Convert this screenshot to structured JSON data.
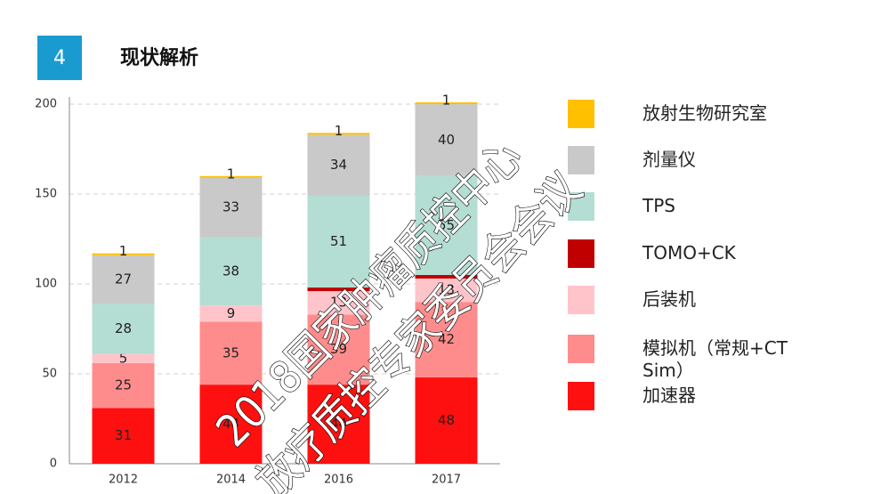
{
  "header": {
    "number": "4",
    "title": "现状解析"
  },
  "chart_data": {
    "type": "stacked_bar",
    "categories": [
      "2012",
      "2014",
      "2016",
      "2017"
    ],
    "series": [
      {
        "name": "加速器",
        "color": "#ff1010",
        "values": [
          31,
          44,
          44,
          48
        ]
      },
      {
        "name": "模拟机（常规+CT Sim）",
        "color": "#ff8c8c",
        "values": [
          25,
          35,
          39,
          42
        ]
      },
      {
        "name": "后装机",
        "color": "#ffc4ca",
        "values": [
          5,
          9,
          13,
          13
        ]
      },
      {
        "name": "TOMO+CK",
        "color": "#c00000",
        "values": [
          0,
          0,
          2,
          2
        ],
        "labels": false
      },
      {
        "name": "TPS",
        "color": "#b4ddd3",
        "values": [
          28,
          38,
          51,
          55
        ]
      },
      {
        "name": "剂量仪",
        "color": "#c9c9c9",
        "values": [
          27,
          33,
          34,
          40
        ]
      },
      {
        "name": "放射生物研究室",
        "color": "#ffc000",
        "values": [
          1,
          1,
          1,
          1
        ]
      }
    ],
    "ylim": [
      0,
      200
    ],
    "yticks": [
      0,
      50,
      100,
      150,
      200
    ],
    "grid": true
  },
  "watermark": [
    "2018国家肿瘤质控中心",
    "放疗质控专家委员会会议"
  ]
}
